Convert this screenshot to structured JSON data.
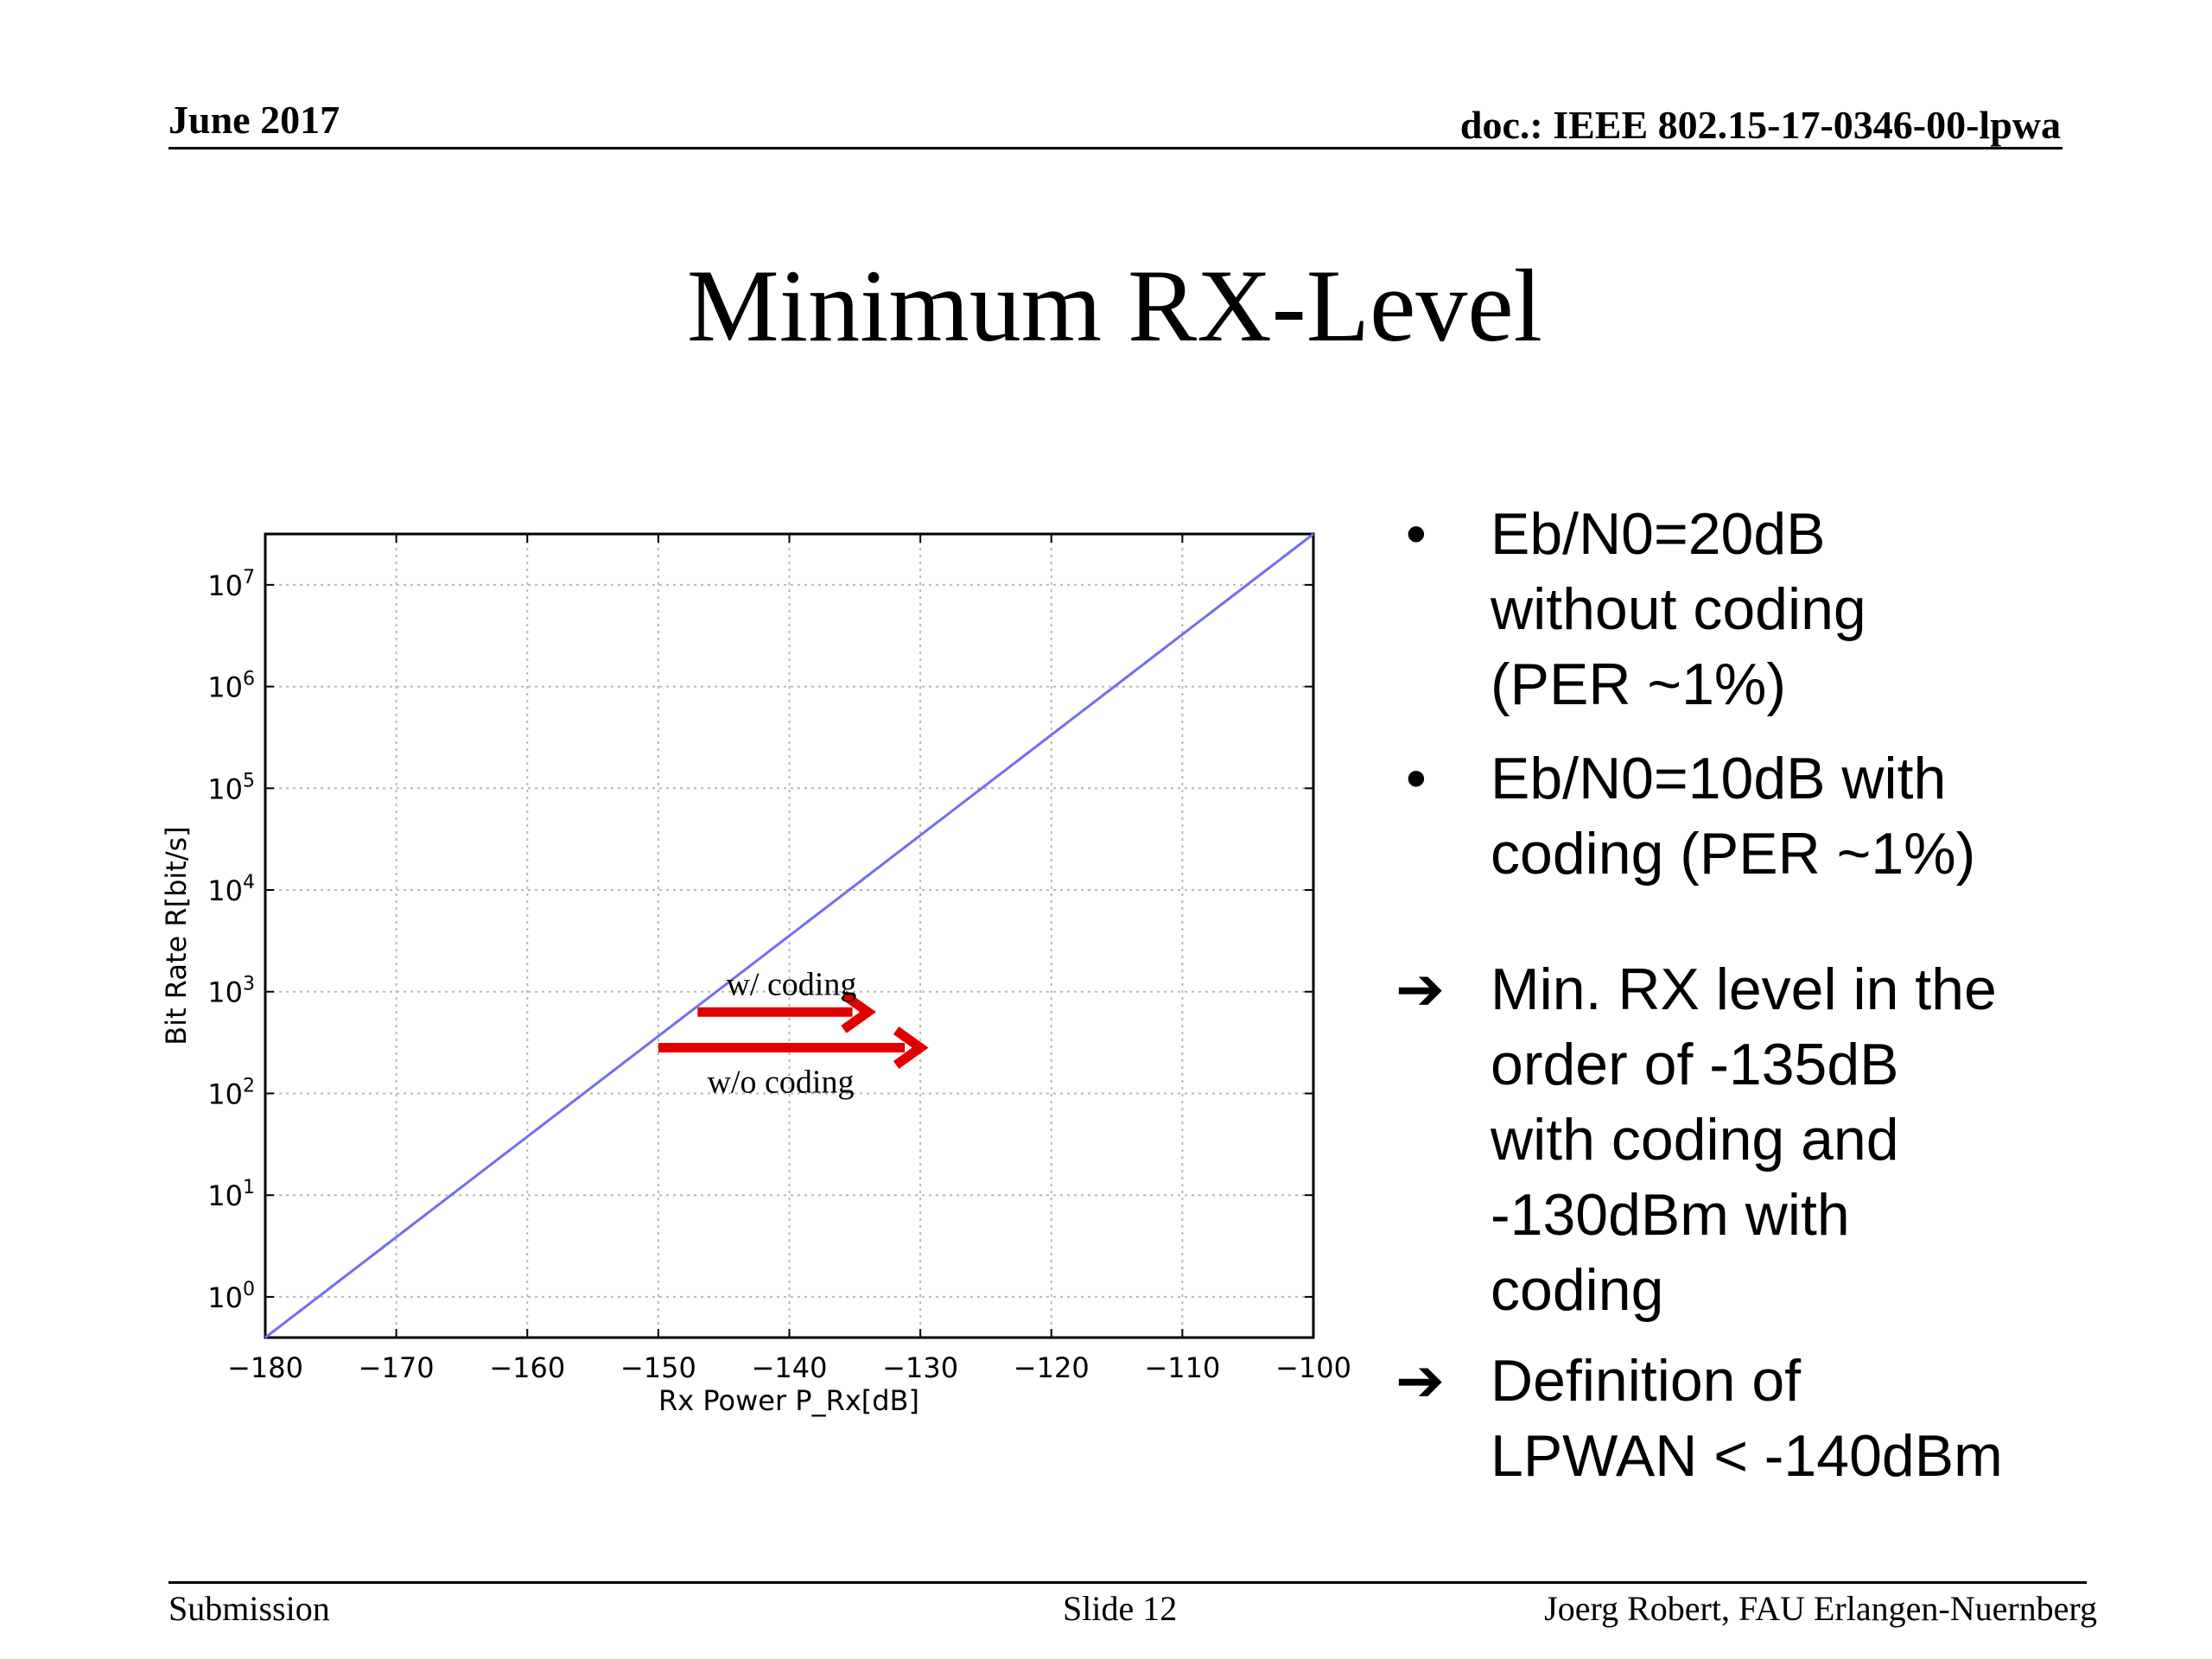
{
  "header": {
    "date": "June 2017",
    "doc": "doc.: IEEE 802.15-17-0346-00-lpwa"
  },
  "slide_title": "Minimum RX-Level",
  "chart_data": {
    "type": "line",
    "xlabel": "Rx Power P_Rx[dB]",
    "ylabel": "Bit Rate R[bit/s]",
    "xlim": [
      -180,
      -100
    ],
    "ylim_log10": [
      -0.4,
      7.5
    ],
    "y_scale": "log",
    "grid": true,
    "x_ticks": [
      -180,
      -170,
      -160,
      -150,
      -140,
      -130,
      -120,
      -110,
      -100
    ],
    "x_tick_labels": [
      "−180",
      "−170",
      "−160",
      "−150",
      "−140",
      "−130",
      "−120",
      "−110",
      "−100"
    ],
    "y_ticks_log10": [
      0,
      1,
      2,
      3,
      4,
      5,
      6,
      7
    ],
    "y_tick_base": "10",
    "y_tick_exponents": [
      "0",
      "1",
      "2",
      "3",
      "4",
      "5",
      "6",
      "7"
    ],
    "series": [
      {
        "color": "#6f6ff0",
        "x": [
          -180,
          -100
        ],
        "y_log10": [
          -0.4,
          7.5
        ]
      }
    ],
    "annotations": [
      {
        "text": "w/ coding",
        "from": [
          -147,
          2.8
        ],
        "to": [
          -134,
          2.8
        ],
        "color": "#e00000"
      },
      {
        "text": "w/o coding",
        "from": [
          -150,
          2.45
        ],
        "to": [
          -130,
          2.45
        ],
        "color": "#e00000"
      }
    ]
  },
  "bullets": {
    "items": [
      {
        "marker": "•",
        "lines": [
          "Eb/N0=20dB",
          "without coding",
          "(PER ~1%)"
        ]
      },
      {
        "marker": "•",
        "lines": [
          "Eb/N0=10dB with",
          "coding (PER ~1%)"
        ]
      },
      {
        "marker": "➔",
        "lines": [
          "Min. RX level in the",
          "order of -135dB",
          "with coding and",
          "-130dBm with",
          "coding"
        ]
      },
      {
        "marker": "➔",
        "lines": [
          "Definition of",
          "LPWAN < -140dBm"
        ]
      }
    ]
  },
  "footer": {
    "left": "Submission",
    "center": "Slide 12",
    "right": "Joerg Robert, FAU Erlangen-Nuernberg"
  }
}
